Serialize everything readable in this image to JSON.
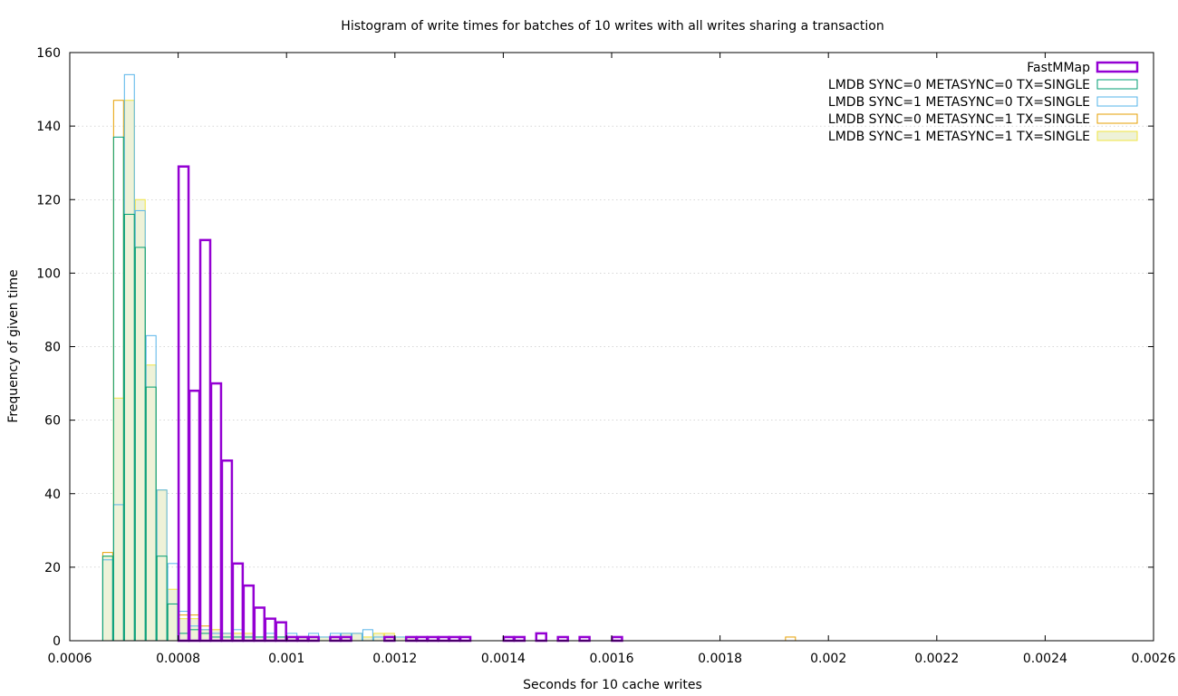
{
  "chart_data": {
    "type": "histogram",
    "title": "Histogram of write times for batches of 10 writes with all writes sharing a transaction",
    "xlabel": "Seconds for 10 cache writes",
    "ylabel": "Frequency of given time",
    "xlim": [
      0.0006,
      0.0026
    ],
    "ylim": [
      0,
      160
    ],
    "bin_width": 2e-05,
    "xticks": [
      {
        "v": 0.0006,
        "label": "0.0006"
      },
      {
        "v": 0.0008,
        "label": "0.0008"
      },
      {
        "v": 0.001,
        "label": "0.001"
      },
      {
        "v": 0.0012,
        "label": "0.0012"
      },
      {
        "v": 0.0014,
        "label": "0.0014"
      },
      {
        "v": 0.0016,
        "label": "0.0016"
      },
      {
        "v": 0.0018,
        "label": "0.0018"
      },
      {
        "v": 0.002,
        "label": "0.002"
      },
      {
        "v": 0.0022,
        "label": "0.0022"
      },
      {
        "v": 0.0024,
        "label": "0.0024"
      },
      {
        "v": 0.0026,
        "label": "0.0026"
      }
    ],
    "yticks": [
      {
        "v": 0,
        "label": "0"
      },
      {
        "v": 20,
        "label": "20"
      },
      {
        "v": 40,
        "label": "40"
      },
      {
        "v": 60,
        "label": "60"
      },
      {
        "v": 80,
        "label": "80"
      },
      {
        "v": 100,
        "label": "100"
      },
      {
        "v": 120,
        "label": "120"
      },
      {
        "v": 140,
        "label": "140"
      },
      {
        "v": 160,
        "label": "160"
      }
    ],
    "grid": "horizontal dotted",
    "legend_position": "top-right",
    "series": [
      {
        "name": "LMDB SYNC=0 METASYNC=1 TX=SINGLE",
        "color": "#e69f00",
        "stroke_width": 1,
        "fill": "none",
        "bins": [
          [
            0.00066,
            24
          ],
          [
            0.00068,
            147
          ],
          [
            0.0007,
            116
          ],
          [
            0.00072,
            107
          ],
          [
            0.00074,
            69
          ],
          [
            0.00076,
            22
          ],
          [
            0.00078,
            10
          ],
          [
            0.0008,
            7
          ],
          [
            0.00082,
            7
          ],
          [
            0.00084,
            4
          ],
          [
            0.00086,
            3
          ],
          [
            0.00088,
            2
          ],
          [
            0.0009,
            2
          ],
          [
            0.00092,
            1
          ],
          [
            0.00094,
            1
          ],
          [
            0.00096,
            1
          ],
          [
            0.00098,
            1
          ],
          [
            0.001,
            1
          ],
          [
            0.00102,
            1
          ],
          [
            0.00104,
            1
          ],
          [
            0.00108,
            1
          ],
          [
            0.0011,
            1
          ],
          [
            0.00114,
            1
          ],
          [
            0.00118,
            1
          ],
          [
            0.00122,
            1
          ],
          [
            0.00192,
            1
          ]
        ]
      },
      {
        "name": "LMDB SYNC=1 METASYNC=1 TX=SINGLE",
        "color": "#f0e442",
        "stroke_width": 1,
        "fill": "#eef2d8",
        "bins": [
          [
            0.00066,
            23
          ],
          [
            0.00068,
            66
          ],
          [
            0.0007,
            147
          ],
          [
            0.00072,
            120
          ],
          [
            0.00074,
            75
          ],
          [
            0.00076,
            41
          ],
          [
            0.00078,
            14
          ],
          [
            0.0008,
            6
          ],
          [
            0.00082,
            6
          ],
          [
            0.00084,
            3
          ],
          [
            0.00086,
            3
          ],
          [
            0.00088,
            2
          ],
          [
            0.0009,
            2
          ],
          [
            0.00092,
            2
          ],
          [
            0.00094,
            1
          ],
          [
            0.00096,
            1
          ],
          [
            0.00098,
            1
          ],
          [
            0.001,
            1
          ],
          [
            0.00102,
            1
          ],
          [
            0.00104,
            1
          ],
          [
            0.00106,
            1
          ],
          [
            0.00108,
            1
          ],
          [
            0.0011,
            2
          ],
          [
            0.00112,
            2
          ],
          [
            0.00114,
            1
          ],
          [
            0.00116,
            2
          ],
          [
            0.00118,
            2
          ],
          [
            0.0012,
            1
          ],
          [
            0.00122,
            1
          ]
        ]
      },
      {
        "name": "LMDB SYNC=1 METASYNC=0 TX=SINGLE",
        "color": "#56b4e9",
        "stroke_width": 1,
        "fill": "none",
        "bins": [
          [
            0.00066,
            22
          ],
          [
            0.00068,
            37
          ],
          [
            0.0007,
            154
          ],
          [
            0.00072,
            117
          ],
          [
            0.00074,
            83
          ],
          [
            0.00076,
            41
          ],
          [
            0.00078,
            21
          ],
          [
            0.0008,
            8
          ],
          [
            0.00082,
            4
          ],
          [
            0.00084,
            3
          ],
          [
            0.00086,
            2
          ],
          [
            0.00088,
            2
          ],
          [
            0.0009,
            3
          ],
          [
            0.00092,
            1
          ],
          [
            0.00094,
            1
          ],
          [
            0.00096,
            2
          ],
          [
            0.00098,
            1
          ],
          [
            0.001,
            2
          ],
          [
            0.00102,
            1
          ],
          [
            0.00104,
            2
          ],
          [
            0.00106,
            1
          ],
          [
            0.00108,
            2
          ],
          [
            0.0011,
            2
          ],
          [
            0.00112,
            2
          ],
          [
            0.00114,
            3
          ],
          [
            0.00116,
            1
          ],
          [
            0.00118,
            1
          ],
          [
            0.0012,
            1
          ],
          [
            0.00124,
            1
          ],
          [
            0.00126,
            1
          ],
          [
            0.00128,
            1
          ],
          [
            0.0013,
            1
          ],
          [
            0.00132,
            1
          ]
        ]
      },
      {
        "name": "LMDB SYNC=0 METASYNC=0 TX=SINGLE",
        "color": "#009e73",
        "stroke_width": 1,
        "fill": "none",
        "bins": [
          [
            0.00066,
            23
          ],
          [
            0.00068,
            137
          ],
          [
            0.0007,
            116
          ],
          [
            0.00072,
            107
          ],
          [
            0.00074,
            69
          ],
          [
            0.00076,
            23
          ],
          [
            0.00078,
            10
          ],
          [
            0.0008,
            2
          ],
          [
            0.00082,
            3
          ],
          [
            0.00084,
            2
          ],
          [
            0.00086,
            1
          ],
          [
            0.00088,
            1
          ],
          [
            0.0009,
            1
          ],
          [
            0.00092,
            1
          ],
          [
            0.00094,
            1
          ],
          [
            0.00096,
            1
          ],
          [
            0.00098,
            1
          ],
          [
            0.001,
            1
          ]
        ]
      },
      {
        "name": "FastMMap",
        "color": "#9400d3",
        "stroke_width": 2.5,
        "fill": "none",
        "bins": [
          [
            0.0008,
            129
          ],
          [
            0.00082,
            68
          ],
          [
            0.00084,
            109
          ],
          [
            0.00086,
            70
          ],
          [
            0.00088,
            49
          ],
          [
            0.0009,
            21
          ],
          [
            0.00092,
            15
          ],
          [
            0.00094,
            9
          ],
          [
            0.00096,
            6
          ],
          [
            0.00098,
            5
          ],
          [
            0.001,
            1
          ],
          [
            0.00102,
            1
          ],
          [
            0.00104,
            1
          ],
          [
            0.00108,
            1
          ],
          [
            0.0011,
            1
          ],
          [
            0.00118,
            1
          ],
          [
            0.00122,
            1
          ],
          [
            0.00124,
            1
          ],
          [
            0.00126,
            1
          ],
          [
            0.00128,
            1
          ],
          [
            0.0013,
            1
          ],
          [
            0.00132,
            1
          ],
          [
            0.0014,
            1
          ],
          [
            0.00142,
            1
          ],
          [
            0.00146,
            2
          ],
          [
            0.0015,
            1
          ],
          [
            0.00154,
            1
          ],
          [
            0.0016,
            1
          ]
        ]
      }
    ],
    "legend_order": [
      "FastMMap",
      "LMDB SYNC=0 METASYNC=0 TX=SINGLE",
      "LMDB SYNC=1 METASYNC=0 TX=SINGLE",
      "LMDB SYNC=0 METASYNC=1 TX=SINGLE",
      "LMDB SYNC=1 METASYNC=1 TX=SINGLE"
    ]
  }
}
